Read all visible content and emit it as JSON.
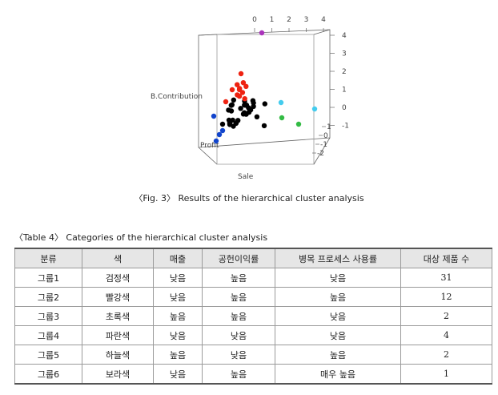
{
  "chart_data": {
    "type": "scatter",
    "title": "",
    "xlabel": "Sale",
    "ylabel": "B.Contribution",
    "zlabel": "Profit",
    "top_ticks": [
      "0",
      "1",
      "2",
      "3",
      "4"
    ],
    "right_ticks": [
      "4",
      "3",
      "2",
      "1",
      "0",
      "-1"
    ],
    "depth_ticks": [
      "1",
      "0",
      "-1",
      "-2"
    ],
    "series": [
      {
        "color": "#000000",
        "count": 31
      },
      {
        "color": "#ee2211",
        "count": 12
      },
      {
        "color": "#33bb44",
        "count": 2
      },
      {
        "color": "#1144cc",
        "count": 4
      },
      {
        "color": "#44ccee",
        "count": 2
      },
      {
        "color": "#aa33bb",
        "count": 1
      }
    ]
  },
  "figure_caption": "〈Fig. 3〉 Results of the hierarchical cluster analysis",
  "table_caption": "〈Table 4〉 Categories of the hierarchical cluster analysis",
  "table": {
    "headers": [
      "분류",
      "색",
      "매출",
      "공헌이익률",
      "병목 프로세스 사용률",
      "대상 제품 수"
    ],
    "rows": [
      [
        "그룹1",
        "검정색",
        "낮음",
        "높음",
        "낮음",
        "31"
      ],
      [
        "그룹2",
        "빨강색",
        "낮음",
        "높음",
        "높음",
        "12"
      ],
      [
        "그룹3",
        "초록색",
        "높음",
        "높음",
        "낮음",
        "2"
      ],
      [
        "그룹4",
        "파란색",
        "낮음",
        "낮음",
        "낮음",
        "4"
      ],
      [
        "그룹5",
        "하늘색",
        "높음",
        "낮음",
        "높음",
        "2"
      ],
      [
        "그룹6",
        "보라색",
        "낮음",
        "높음",
        "매우 높음",
        "1"
      ]
    ]
  }
}
